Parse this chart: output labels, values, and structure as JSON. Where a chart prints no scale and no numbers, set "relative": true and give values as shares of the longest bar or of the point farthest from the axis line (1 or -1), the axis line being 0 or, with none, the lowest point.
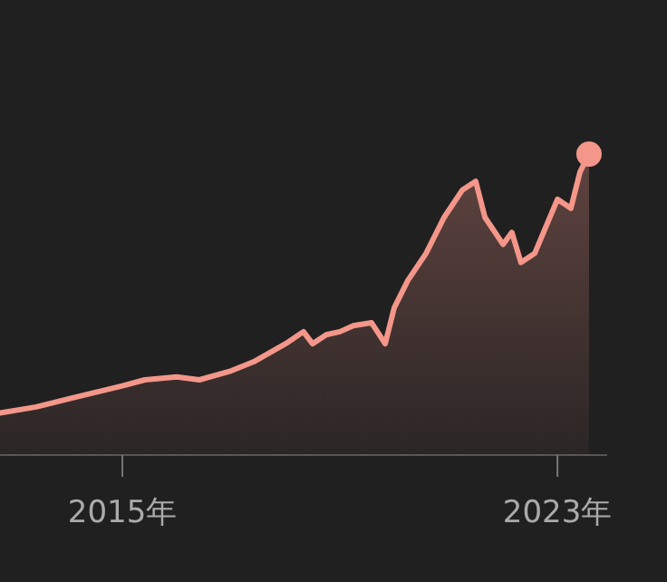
{
  "chart_data": {
    "type": "area",
    "relative": true,
    "color": "#f4968a",
    "x": [
      "2012-10",
      "2013-06",
      "2014-02",
      "2015-01",
      "2015-06",
      "2016-01",
      "2016-06",
      "2017-01",
      "2017-06",
      "2018-01",
      "2018-05",
      "2018-07",
      "2018-10",
      "2019-01",
      "2019-04",
      "2019-08",
      "2019-11",
      "2020-01",
      "2020-04",
      "2020-08",
      "2020-12",
      "2021-04",
      "2021-07",
      "2021-09",
      "2022-01",
      "2022-03",
      "2022-05",
      "2022-08",
      "2023-01",
      "2023-04",
      "2023-06",
      "2023-08"
    ],
    "values": [
      0.14,
      0.16,
      0.19,
      0.23,
      0.25,
      0.26,
      0.25,
      0.28,
      0.31,
      0.37,
      0.41,
      0.37,
      0.4,
      0.41,
      0.43,
      0.44,
      0.37,
      0.49,
      0.58,
      0.67,
      0.79,
      0.88,
      0.91,
      0.79,
      0.7,
      0.74,
      0.64,
      0.67,
      0.85,
      0.82,
      0.94,
      1.0
    ],
    "xlim": [
      "2012-10",
      "2023-12"
    ],
    "xticks": [
      {
        "value": "2015-01",
        "label": "2015年"
      },
      {
        "value": "2023-01",
        "label": "2023年"
      }
    ]
  }
}
